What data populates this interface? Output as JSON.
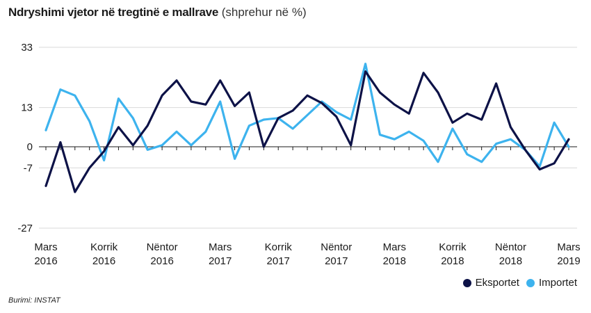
{
  "title": {
    "main": "Ndryshimi vjetor në tregtinë e mallrave",
    "sub": "(shprehur në %)"
  },
  "source": "Burimi: INSTAT",
  "colors": {
    "exports": "#0d1247",
    "imports": "#3db3ee",
    "grid": "#d9d9d9"
  },
  "chart_data": {
    "type": "line",
    "title": "Ndryshimi vjetor në tregtinë e mallrave (shprehur në %)",
    "y_ticks": [
      33,
      13,
      0,
      -7,
      -27
    ],
    "ylim": [
      -27,
      33
    ],
    "x_tick_labels": [
      {
        "index": 0,
        "line1": "Mars",
        "line2": "2016"
      },
      {
        "index": 4,
        "line1": "Korrik",
        "line2": "2016"
      },
      {
        "index": 8,
        "line1": "Nëntor",
        "line2": "2016"
      },
      {
        "index": 12,
        "line1": "Mars",
        "line2": "2017"
      },
      {
        "index": 16,
        "line1": "Korrik",
        "line2": "2017"
      },
      {
        "index": 20,
        "line1": "Nëntor",
        "line2": "2017"
      },
      {
        "index": 24,
        "line1": "Mars",
        "line2": "2018"
      },
      {
        "index": 28,
        "line1": "Korrik",
        "line2": "2018"
      },
      {
        "index": 32,
        "line1": "Nëntor",
        "line2": "2018"
      },
      {
        "index": 36,
        "line1": "Mars",
        "line2": "2019"
      }
    ],
    "x_count": 37,
    "legend_position": "bottom-right",
    "series": [
      {
        "name": "Eksportet",
        "color": "#0d1247",
        "values": [
          -13,
          1.5,
          -15,
          -7,
          -1.5,
          6.5,
          0.5,
          7,
          17,
          22,
          15,
          14,
          22,
          13.5,
          18,
          0,
          9.5,
          12,
          17,
          14.5,
          10,
          0.5,
          25,
          18,
          14,
          11,
          24.5,
          18,
          8,
          11,
          9,
          21,
          6.5,
          -1,
          -7.5,
          -5.5,
          2.5
        ]
      },
      {
        "name": "Importet",
        "color": "#3db3ee",
        "values": [
          5.5,
          19,
          17,
          8.5,
          -4.5,
          16,
          9.5,
          -1,
          0.5,
          5,
          0.5,
          5,
          15,
          -4,
          7,
          9,
          9.5,
          6,
          10.5,
          15,
          11.5,
          9,
          27.5,
          4,
          2.5,
          5,
          2,
          -5,
          6,
          -2.5,
          -5,
          1,
          2.5,
          -1,
          -6.5,
          8,
          0
        ]
      }
    ]
  }
}
